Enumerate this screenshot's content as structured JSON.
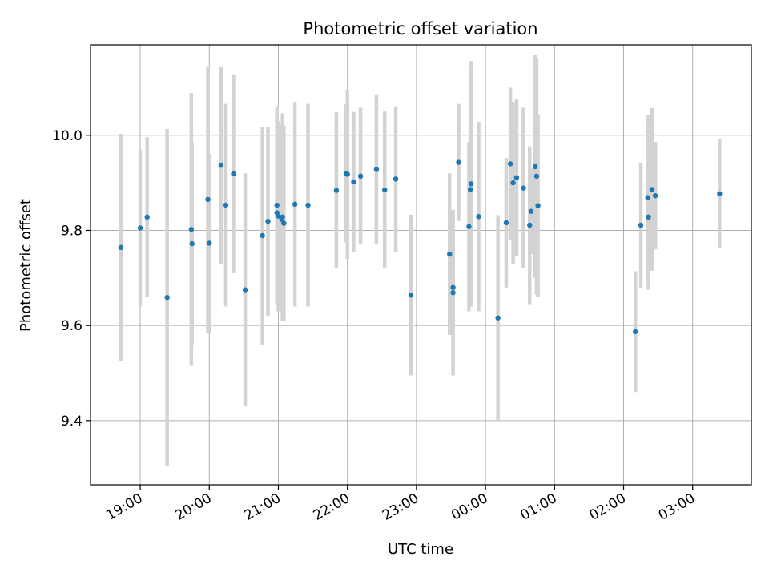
{
  "chart_data": {
    "type": "scatter",
    "title": "Photometric offset variation",
    "xlabel": "UTC time",
    "ylabel": "Photometric offset",
    "grid": true,
    "xlim_hours": [
      18.28,
      27.85
    ],
    "ylim": [
      9.265,
      10.19
    ],
    "x_ticks": [
      {
        "value": 19,
        "label": "19:00"
      },
      {
        "value": 20,
        "label": "20:00"
      },
      {
        "value": 21,
        "label": "21:00"
      },
      {
        "value": 22,
        "label": "22:00"
      },
      {
        "value": 23,
        "label": "23:00"
      },
      {
        "value": 24,
        "label": "00:00"
      },
      {
        "value": 25,
        "label": "01:00"
      },
      {
        "value": 26,
        "label": "02:00"
      },
      {
        "value": 27,
        "label": "03:00"
      }
    ],
    "y_ticks": [
      {
        "value": 9.4,
        "label": "9.4"
      },
      {
        "value": 9.6,
        "label": "9.6"
      },
      {
        "value": 9.8,
        "label": "9.8"
      },
      {
        "value": 10.0,
        "label": "10.0"
      }
    ],
    "colors": {
      "points": "#1f77b4",
      "errorbars": "#d3d3d3",
      "grid": "#b0b0b0"
    },
    "series": [
      {
        "name": "offset",
        "x_hours": [
          18.72,
          19.0,
          19.1,
          19.39,
          19.74,
          19.75,
          19.98,
          20.0,
          20.17,
          20.24,
          20.35,
          20.52,
          20.77,
          20.85,
          20.98,
          20.98,
          21.0,
          21.05,
          21.06,
          21.08,
          21.24,
          21.43,
          21.84,
          21.98,
          22.0,
          22.09,
          22.19,
          22.42,
          22.54,
          22.7,
          22.92,
          23.48,
          23.53,
          23.53,
          23.61,
          23.76,
          23.78,
          23.79,
          23.9,
          24.18,
          24.3,
          24.36,
          24.4,
          24.45,
          24.55,
          24.64,
          24.66,
          24.72,
          24.74,
          24.76,
          26.17,
          26.25,
          26.35,
          26.36,
          26.41,
          26.46,
          27.39
        ],
        "y": [
          9.764,
          9.805,
          9.828,
          9.659,
          9.802,
          9.772,
          9.865,
          9.773,
          9.937,
          9.853,
          9.919,
          9.675,
          9.789,
          9.819,
          9.853,
          9.837,
          9.83,
          9.823,
          9.828,
          9.815,
          9.855,
          9.853,
          9.884,
          9.92,
          9.918,
          9.902,
          9.914,
          9.928,
          9.885,
          9.908,
          9.664,
          9.75,
          9.68,
          9.669,
          9.943,
          9.808,
          9.886,
          9.898,
          9.829,
          9.616,
          9.816,
          9.94,
          9.9,
          9.911,
          9.889,
          9.811,
          9.84,
          9.934,
          9.914,
          9.852,
          9.587,
          9.811,
          9.869,
          9.828,
          9.886,
          9.873,
          9.877
        ],
        "yerr_low": [
          9.525,
          9.64,
          9.66,
          9.305,
          9.515,
          9.56,
          9.585,
          9.585,
          9.73,
          9.64,
          9.71,
          9.43,
          9.56,
          9.62,
          9.645,
          9.66,
          9.63,
          9.625,
          9.61,
          9.61,
          9.64,
          9.64,
          9.72,
          9.775,
          9.74,
          9.755,
          9.77,
          9.77,
          9.72,
          9.755,
          9.495,
          9.58,
          9.595,
          9.495,
          9.82,
          9.63,
          9.64,
          9.64,
          9.63,
          9.4,
          9.68,
          9.78,
          9.73,
          9.745,
          9.72,
          9.645,
          9.75,
          9.7,
          9.665,
          9.66,
          9.46,
          9.68,
          9.695,
          9.675,
          9.715,
          9.76,
          9.762
        ]
      }
    ]
  }
}
